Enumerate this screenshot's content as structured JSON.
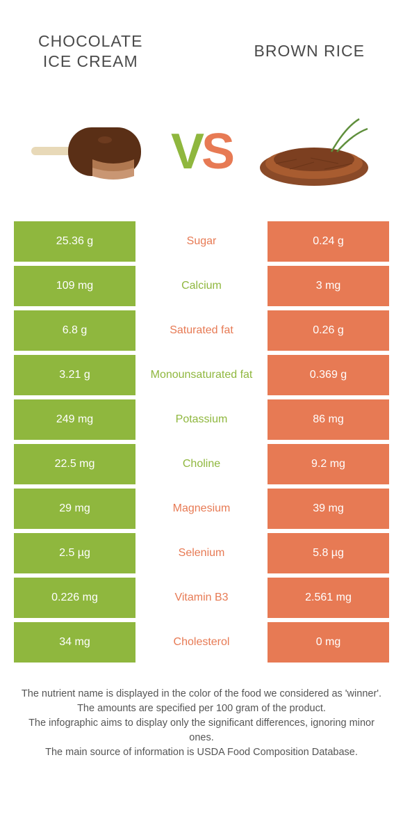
{
  "colors": {
    "left": "#8fb73e",
    "right": "#e77a54",
    "white": "#ffffff"
  },
  "foods": {
    "left": "CHOCOLATE\nICE CREAM",
    "right": "BROWN RICE"
  },
  "vs": "VS",
  "rows": [
    {
      "label": "Sugar",
      "left": "25.36 g",
      "right": "0.24 g",
      "winner": "right"
    },
    {
      "label": "Calcium",
      "left": "109 mg",
      "right": "3 mg",
      "winner": "left"
    },
    {
      "label": "Saturated fat",
      "left": "6.8 g",
      "right": "0.26 g",
      "winner": "right"
    },
    {
      "label": "Monounsaturated fat",
      "left": "3.21 g",
      "right": "0.369 g",
      "winner": "left"
    },
    {
      "label": "Potassium",
      "left": "249 mg",
      "right": "86 mg",
      "winner": "left"
    },
    {
      "label": "Choline",
      "left": "22.5 mg",
      "right": "9.2 mg",
      "winner": "left"
    },
    {
      "label": "Magnesium",
      "left": "29 mg",
      "right": "39 mg",
      "winner": "right"
    },
    {
      "label": "Selenium",
      "left": "2.5 µg",
      "right": "5.8 µg",
      "winner": "right"
    },
    {
      "label": "Vitamin B3",
      "left": "0.226 mg",
      "right": "2.561 mg",
      "winner": "right"
    },
    {
      "label": "Cholesterol",
      "left": "34 mg",
      "right": "0 mg",
      "winner": "right"
    }
  ],
  "footnotes": [
    "The nutrient name is displayed in the color of the food we considered as 'winner'.",
    "The amounts are specified per 100 gram of the product.",
    "The infographic aims to display only the significant differences, ignoring minor ones.",
    "The main source of information is USDA Food Composition Database."
  ]
}
